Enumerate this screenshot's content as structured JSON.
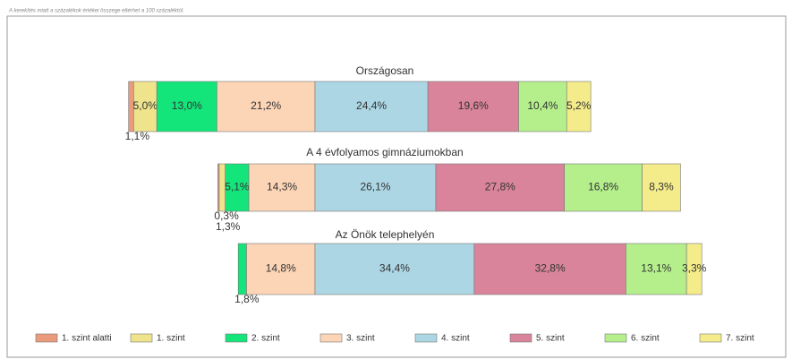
{
  "chart_data": {
    "type": "bar",
    "orientation": "horizontal",
    "stacked": true,
    "subtitle": "A kerekítés miatt a százalékok értékei összege eltérhet a 100 százaléktól.",
    "categories": [
      "Országosan",
      "A 4 évfolyamos gimnáziumokban",
      "Az Önök telephelyén"
    ],
    "series": [
      {
        "name": "1. szint alatti",
        "color": "#ec9a7c",
        "values": [
          1.1,
          0.3,
          null
        ],
        "value_labels": [
          "1,1%",
          "0,3%",
          null
        ]
      },
      {
        "name": "1. szint",
        "color": "#efe48c",
        "values": [
          5.0,
          1.3,
          null
        ],
        "value_labels": [
          "5,0%",
          "1,3%",
          null
        ]
      },
      {
        "name": "2. szint",
        "color": "#14e57a",
        "values": [
          13.0,
          5.1,
          1.8
        ],
        "value_labels": [
          "13,0%",
          "5,1%",
          "1,8%"
        ]
      },
      {
        "name": "3. szint",
        "color": "#fcd4b6",
        "values": [
          21.2,
          14.3,
          14.8
        ],
        "value_labels": [
          "21,2%",
          "14,3%",
          "14,8%"
        ]
      },
      {
        "name": "4. szint",
        "color": "#acd6e4",
        "values": [
          24.4,
          26.1,
          34.4
        ],
        "value_labels": [
          "24,4%",
          "26,1%",
          "34,4%"
        ]
      },
      {
        "name": "5. szint",
        "color": "#d9849a",
        "values": [
          19.6,
          27.8,
          32.8
        ],
        "value_labels": [
          "19,6%",
          "27,8%",
          "32,8%"
        ]
      },
      {
        "name": "6. szint",
        "color": "#b4ef8c",
        "values": [
          10.4,
          16.8,
          13.1
        ],
        "value_labels": [
          "10,4%",
          "16,8%",
          "13,1%"
        ]
      },
      {
        "name": "7. szint",
        "color": "#f4ec8a",
        "values": [
          5.2,
          8.3,
          3.3
        ],
        "value_labels": [
          "5,2%",
          "8,3%",
          "3,3%"
        ]
      }
    ]
  }
}
